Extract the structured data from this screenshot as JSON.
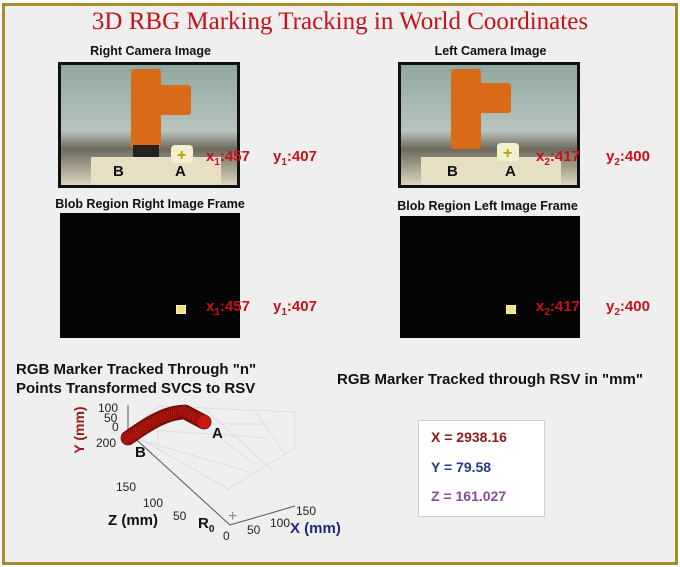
{
  "title": "3D RBG Marking Tracking in World Coordinates",
  "right_camera": {
    "caption": "Right Camera Image",
    "label_a": "A",
    "label_b": "B",
    "x_label": "x",
    "x_sub": "1",
    "x_value": ":457",
    "y_label": "y",
    "y_sub": "1",
    "y_value": ":407"
  },
  "left_camera": {
    "caption": "Left Camera Image",
    "label_a": "A",
    "label_b": "B",
    "x_label": "x",
    "x_sub": "2",
    "x_value": ":417",
    "y_label": "y",
    "y_sub": "2",
    "y_value": ":400"
  },
  "right_blob": {
    "caption": "Blob Region Right Image Frame",
    "x_label": "x",
    "x_sub": "1",
    "x_value": ":457",
    "y_label": "y",
    "y_sub": "1",
    "y_value": ":407"
  },
  "left_blob": {
    "caption": "Blob Region Left Image Frame",
    "x_label": "x",
    "x_sub": "2",
    "x_value": ":417",
    "y_label": "y",
    "y_sub": "2",
    "y_value": ":400"
  },
  "plot": {
    "heading_line1": "RGB Marker Tracked Through \"n\"",
    "heading_line2": "Points Transformed SVCS to RSV",
    "y_label": "Y (mm)",
    "z_label": "Z (mm)",
    "x_label": "X (mm)",
    "y_ticks": [
      "100",
      "50",
      "0"
    ],
    "z_ticks": [
      "200",
      "150",
      "100",
      "50"
    ],
    "x_ticks": [
      "0",
      "50",
      "100",
      "150"
    ],
    "point_a": "A",
    "point_b": "B",
    "origin": "R",
    "origin_sub": "0",
    "marker_color": "#c81a10"
  },
  "result": {
    "heading": "RGB Marker Tracked through RSV in \"mm\"",
    "x": "X = 2938.16",
    "y": "Y = 79.58",
    "z": "Z = 161.027",
    "x_color": "#8b1a1a",
    "y_color": "#1f3b8a",
    "z_color": "#8a4a9a"
  }
}
